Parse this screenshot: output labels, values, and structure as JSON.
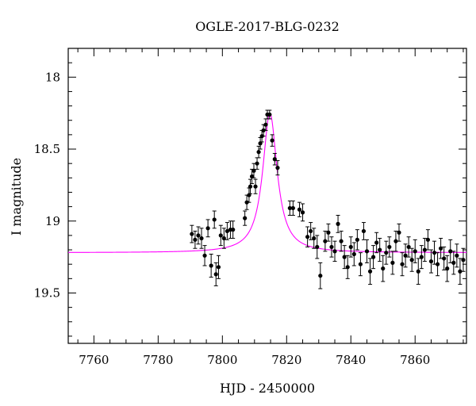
{
  "chart_data": {
    "type": "scatter",
    "title": "OGLE-2017-BLG-0232",
    "xlabel": "HJD - 2450000",
    "ylabel": "I magnitude",
    "xlim": [
      7752,
      7876
    ],
    "ylim": [
      19.85,
      17.8
    ],
    "y_inverted": true,
    "x_ticks": [
      7760,
      7780,
      7800,
      7820,
      7840,
      7860
    ],
    "y_ticks": [
      18,
      18.5,
      19,
      19.5
    ],
    "grid": false,
    "series": [
      {
        "kind": "points_with_errorbars",
        "color": "#000000",
        "points": [
          [
            7790.5,
            19.09,
            0.06
          ],
          [
            7791.5,
            19.13,
            0.06
          ],
          [
            7792.5,
            19.1,
            0.06
          ],
          [
            7793.5,
            19.12,
            0.07
          ],
          [
            7794.5,
            19.24,
            0.07
          ],
          [
            7795.5,
            19.05,
            0.06
          ],
          [
            7796.5,
            19.31,
            0.08
          ],
          [
            7797.5,
            18.99,
            0.06
          ],
          [
            7798,
            19.37,
            0.08
          ],
          [
            7798.8,
            19.32,
            0.08
          ],
          [
            7799.5,
            19.1,
            0.07
          ],
          [
            7800.5,
            19.12,
            0.07
          ],
          [
            7801.5,
            19.07,
            0.06
          ],
          [
            7802.5,
            19.06,
            0.06
          ],
          [
            7803.3,
            19.06,
            0.06
          ],
          [
            7807,
            18.98,
            0.05
          ],
          [
            7807.6,
            18.87,
            0.05
          ],
          [
            7808.3,
            18.82,
            0.05
          ],
          [
            7808.7,
            18.76,
            0.05
          ],
          [
            7809.2,
            18.69,
            0.05
          ],
          [
            7809.8,
            18.65,
            0.05
          ],
          [
            7810.3,
            18.76,
            0.05
          ],
          [
            7810.8,
            18.6,
            0.04
          ],
          [
            7811.3,
            18.52,
            0.04
          ],
          [
            7811.8,
            18.46,
            0.04
          ],
          [
            7812.3,
            18.41,
            0.04
          ],
          [
            7812.8,
            18.37,
            0.04
          ],
          [
            7813.5,
            18.33,
            0.04
          ],
          [
            7814,
            18.26,
            0.03
          ],
          [
            7814.7,
            18.26,
            0.03
          ],
          [
            7815.5,
            18.44,
            0.04
          ],
          [
            7816.3,
            18.57,
            0.04
          ],
          [
            7817.2,
            18.63,
            0.05
          ],
          [
            7821,
            18.91,
            0.05
          ],
          [
            7822,
            18.91,
            0.05
          ],
          [
            7824,
            18.92,
            0.05
          ],
          [
            7825,
            18.94,
            0.06
          ],
          [
            7826.5,
            19.11,
            0.07
          ],
          [
            7827.5,
            19.07,
            0.06
          ],
          [
            7828.5,
            19.12,
            0.07
          ],
          [
            7829.5,
            19.18,
            0.08
          ],
          [
            7830.5,
            19.38,
            0.09
          ],
          [
            7832,
            19.14,
            0.07
          ],
          [
            7833,
            19.08,
            0.06
          ],
          [
            7834,
            19.18,
            0.07
          ],
          [
            7835,
            19.21,
            0.07
          ],
          [
            7836,
            19.02,
            0.06
          ],
          [
            7837,
            19.14,
            0.07
          ],
          [
            7838,
            19.25,
            0.08
          ],
          [
            7839,
            19.32,
            0.08
          ],
          [
            7840,
            19.18,
            0.07
          ],
          [
            7841,
            19.23,
            0.08
          ],
          [
            7842,
            19.13,
            0.07
          ],
          [
            7843,
            19.3,
            0.08
          ],
          [
            7844,
            19.07,
            0.06
          ],
          [
            7845,
            19.21,
            0.08
          ],
          [
            7846,
            19.35,
            0.09
          ],
          [
            7847,
            19.25,
            0.08
          ],
          [
            7848,
            19.15,
            0.07
          ],
          [
            7849,
            19.2,
            0.08
          ],
          [
            7850,
            19.33,
            0.09
          ],
          [
            7851,
            19.22,
            0.08
          ],
          [
            7852,
            19.18,
            0.07
          ],
          [
            7853,
            19.29,
            0.08
          ],
          [
            7854,
            19.14,
            0.07
          ],
          [
            7855,
            19.08,
            0.06
          ],
          [
            7856,
            19.3,
            0.08
          ],
          [
            7857,
            19.24,
            0.08
          ],
          [
            7858,
            19.18,
            0.07
          ],
          [
            7859,
            19.27,
            0.08
          ],
          [
            7860,
            19.21,
            0.08
          ],
          [
            7861,
            19.35,
            0.09
          ],
          [
            7862,
            19.25,
            0.08
          ],
          [
            7863,
            19.2,
            0.08
          ],
          [
            7864,
            19.13,
            0.07
          ],
          [
            7865,
            19.28,
            0.08
          ],
          [
            7866,
            19.22,
            0.08
          ],
          [
            7867,
            19.3,
            0.08
          ],
          [
            7868,
            19.19,
            0.07
          ],
          [
            7869,
            19.26,
            0.08
          ],
          [
            7870,
            19.33,
            0.09
          ],
          [
            7871,
            19.21,
            0.08
          ],
          [
            7872,
            19.29,
            0.08
          ],
          [
            7873,
            19.24,
            0.08
          ],
          [
            7874,
            19.35,
            0.09
          ],
          [
            7875,
            19.27,
            0.08
          ]
        ]
      },
      {
        "kind": "model_curve",
        "color": "#ff00ff",
        "t0": 7814.8,
        "baseline": 19.22,
        "peak": 18.25,
        "tE": 8.5
      }
    ]
  }
}
